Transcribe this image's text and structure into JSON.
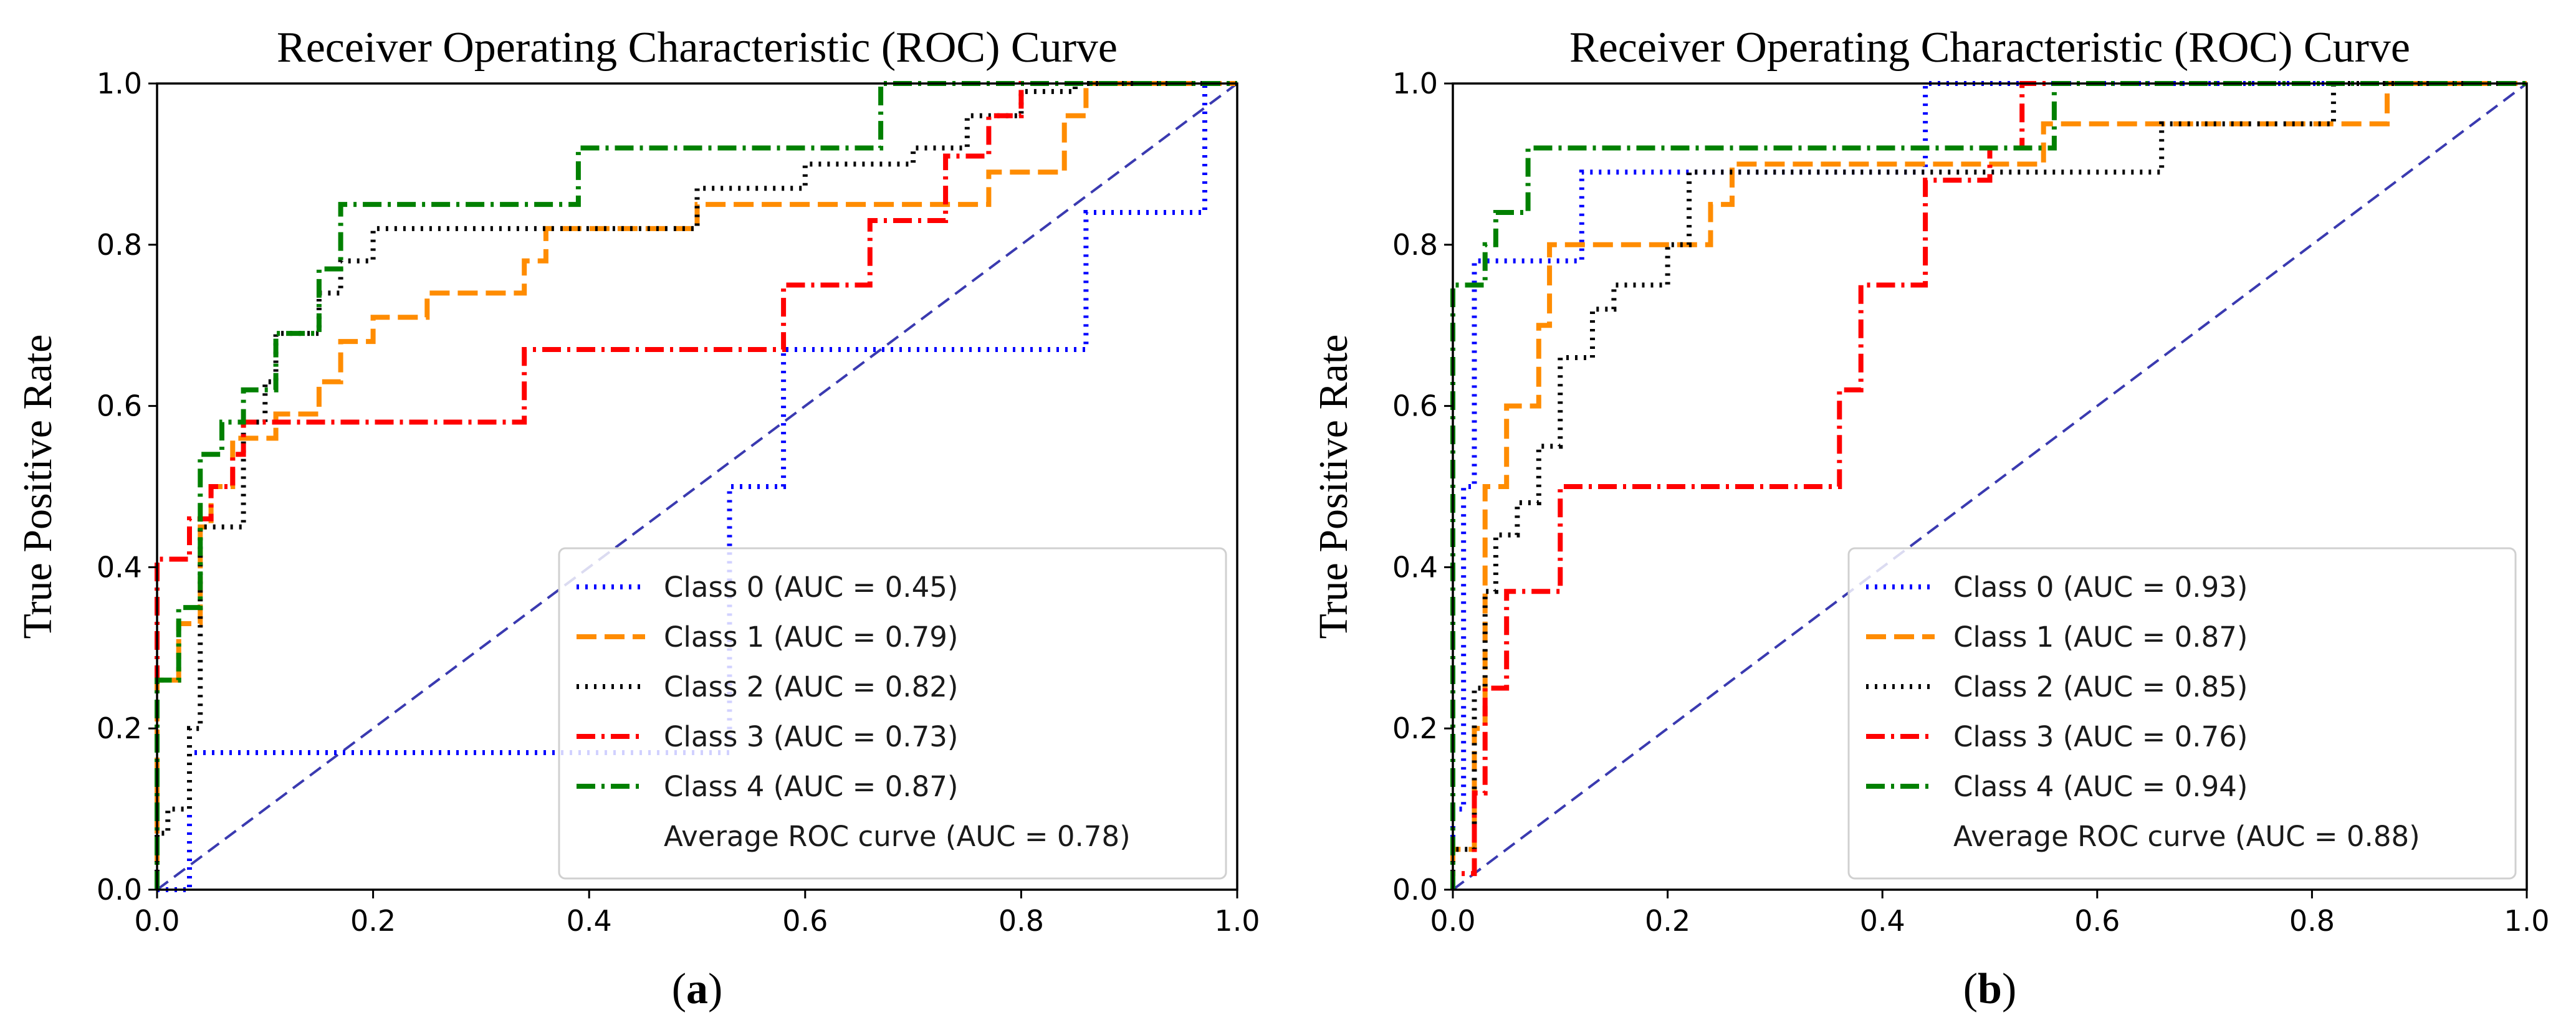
{
  "chart_data": [
    {
      "type": "line",
      "panel_label": "a",
      "title": "Receiver Operating Characteristic (ROC) Curve",
      "xlabel": "",
      "ylabel": "True Positive Rate",
      "xlim": [
        0,
        1
      ],
      "ylim": [
        0,
        1
      ],
      "xticks": [
        "0.0",
        "0.2",
        "0.4",
        "0.6",
        "0.8",
        "1.0"
      ],
      "yticks": [
        "0.0",
        "0.2",
        "0.4",
        "0.6",
        "0.8",
        "1.0"
      ],
      "grid": false,
      "legend_position": "lower-right",
      "legend_extra": "Average ROC curve (AUC = 0.78)",
      "series": [
        {
          "name": "Class 0 (AUC = 0.45)",
          "color": "#0000ff",
          "style": "dotted",
          "x": [
            0,
            0.02,
            0.03,
            0.03,
            0.53,
            0.53,
            0.58,
            0.58,
            0.86,
            0.86,
            0.97,
            0.97,
            1.0
          ],
          "y": [
            0,
            0,
            0.0,
            0.17,
            0.17,
            0.5,
            0.5,
            0.67,
            0.67,
            0.84,
            0.84,
            1.0,
            1.0
          ]
        },
        {
          "name": "Class 1 (AUC = 0.79)",
          "color": "#ff8c00",
          "style": "dashed",
          "x": [
            0,
            0,
            0.02,
            0.02,
            0.04,
            0.04,
            0.05,
            0.05,
            0.07,
            0.07,
            0.11,
            0.11,
            0.15,
            0.15,
            0.17,
            0.17,
            0.2,
            0.2,
            0.25,
            0.25,
            0.34,
            0.34,
            0.36,
            0.36,
            0.42,
            0.42,
            0.5,
            0.5,
            0.69,
            0.69,
            0.77,
            0.77,
            0.84,
            0.84,
            0.86,
            0.86,
            1.0
          ],
          "y": [
            0,
            0.26,
            0.26,
            0.33,
            0.33,
            0.45,
            0.45,
            0.5,
            0.5,
            0.56,
            0.56,
            0.59,
            0.59,
            0.63,
            0.63,
            0.68,
            0.68,
            0.71,
            0.71,
            0.74,
            0.74,
            0.78,
            0.78,
            0.82,
            0.82,
            0.82,
            0.82,
            0.85,
            0.85,
            0.85,
            0.85,
            0.89,
            0.89,
            0.96,
            0.96,
            1.0,
            1.0
          ]
        },
        {
          "name": "Class 2 (AUC = 0.82)",
          "color": "#000000",
          "style": "dotted",
          "x": [
            0,
            0,
            0.01,
            0.01,
            0.03,
            0.03,
            0.04,
            0.04,
            0.08,
            0.08,
            0.1,
            0.1,
            0.11,
            0.11,
            0.15,
            0.15,
            0.17,
            0.17,
            0.2,
            0.2,
            0.5,
            0.5,
            0.6,
            0.6,
            0.7,
            0.7,
            0.75,
            0.75,
            0.8,
            0.8,
            0.85,
            0.85,
            1.0
          ],
          "y": [
            0,
            0.07,
            0.07,
            0.1,
            0.1,
            0.2,
            0.2,
            0.45,
            0.45,
            0.58,
            0.58,
            0.63,
            0.63,
            0.69,
            0.69,
            0.74,
            0.74,
            0.78,
            0.78,
            0.82,
            0.82,
            0.87,
            0.87,
            0.9,
            0.9,
            0.92,
            0.92,
            0.96,
            0.96,
            0.99,
            0.99,
            1.0,
            1.0
          ]
        },
        {
          "name": "Class 3 (AUC = 0.73)",
          "color": "#ff0000",
          "style": "dashdot",
          "x": [
            0,
            0,
            0.03,
            0.03,
            0.05,
            0.05,
            0.07,
            0.07,
            0.08,
            0.08,
            0.34,
            0.34,
            0.58,
            0.58,
            0.66,
            0.66,
            0.73,
            0.73,
            0.77,
            0.77,
            0.8,
            0.8,
            1.0
          ],
          "y": [
            0,
            0.41,
            0.41,
            0.46,
            0.46,
            0.5,
            0.5,
            0.54,
            0.54,
            0.58,
            0.58,
            0.67,
            0.67,
            0.75,
            0.75,
            0.83,
            0.83,
            0.91,
            0.91,
            0.96,
            0.96,
            1.0,
            1.0
          ]
        },
        {
          "name": "Class 4 (AUC = 0.87)",
          "color": "#008000",
          "style": "dashdot",
          "x": [
            0,
            0,
            0.02,
            0.02,
            0.04,
            0.04,
            0.06,
            0.06,
            0.08,
            0.08,
            0.11,
            0.11,
            0.15,
            0.15,
            0.17,
            0.17,
            0.39,
            0.39,
            0.67,
            0.67,
            1.0
          ],
          "y": [
            0,
            0.26,
            0.26,
            0.35,
            0.35,
            0.54,
            0.54,
            0.58,
            0.58,
            0.62,
            0.62,
            0.69,
            0.69,
            0.77,
            0.77,
            0.85,
            0.85,
            0.92,
            0.92,
            1.0,
            1.0
          ]
        }
      ]
    },
    {
      "type": "line",
      "panel_label": "b",
      "title": "Receiver Operating Characteristic (ROC) Curve",
      "xlabel": "",
      "ylabel": "True Positive Rate",
      "xlim": [
        0,
        1
      ],
      "ylim": [
        0,
        1
      ],
      "xticks": [
        "0.0",
        "0.2",
        "0.4",
        "0.6",
        "0.8",
        "1.0"
      ],
      "yticks": [
        "0.0",
        "0.2",
        "0.4",
        "0.6",
        "0.8",
        "1.0"
      ],
      "grid": false,
      "legend_position": "lower-right",
      "legend_extra": "Average ROC curve (AUC = 0.88)",
      "series": [
        {
          "name": "Class 0 (AUC = 0.93)",
          "color": "#0000ff",
          "style": "dotted",
          "x": [
            0,
            0,
            0.01,
            0.01,
            0.02,
            0.02,
            0.04,
            0.04,
            0.12,
            0.12,
            0.44,
            0.44,
            1.0
          ],
          "y": [
            0,
            0.1,
            0.1,
            0.5,
            0.5,
            0.78,
            0.78,
            0.78,
            0.78,
            0.89,
            0.89,
            1.0,
            1.0
          ]
        },
        {
          "name": "Class 1 (AUC = 0.87)",
          "color": "#ff8c00",
          "style": "dashed",
          "x": [
            0,
            0,
            0.02,
            0.02,
            0.03,
            0.03,
            0.05,
            0.05,
            0.08,
            0.08,
            0.09,
            0.09,
            0.24,
            0.24,
            0.26,
            0.26,
            0.55,
            0.55,
            0.73,
            0.73,
            0.87,
            0.87,
            1.0
          ],
          "y": [
            0,
            0.05,
            0.05,
            0.2,
            0.2,
            0.5,
            0.5,
            0.6,
            0.6,
            0.7,
            0.7,
            0.8,
            0.8,
            0.85,
            0.85,
            0.9,
            0.9,
            0.95,
            0.95,
            0.95,
            0.95,
            1.0,
            1.0
          ]
        },
        {
          "name": "Class 2 (AUC = 0.85)",
          "color": "#000000",
          "style": "dotted",
          "x": [
            0,
            0,
            0.02,
            0.02,
            0.03,
            0.03,
            0.04,
            0.04,
            0.06,
            0.06,
            0.08,
            0.08,
            0.1,
            0.1,
            0.13,
            0.13,
            0.15,
            0.15,
            0.2,
            0.2,
            0.22,
            0.22,
            0.66,
            0.66,
            0.82,
            0.82,
            1.0
          ],
          "y": [
            0,
            0.05,
            0.05,
            0.25,
            0.25,
            0.37,
            0.37,
            0.44,
            0.44,
            0.48,
            0.48,
            0.55,
            0.55,
            0.66,
            0.66,
            0.72,
            0.72,
            0.75,
            0.75,
            0.8,
            0.8,
            0.89,
            0.89,
            0.95,
            0.95,
            1.0,
            1.0
          ]
        },
        {
          "name": "Class 3 (AUC = 0.76)",
          "color": "#ff0000",
          "style": "dashdot",
          "x": [
            0,
            0,
            0.02,
            0.02,
            0.03,
            0.03,
            0.05,
            0.05,
            0.1,
            0.1,
            0.36,
            0.36,
            0.38,
            0.38,
            0.44,
            0.44,
            0.5,
            0.5,
            0.53,
            0.53,
            1.0
          ],
          "y": [
            0,
            0.02,
            0.02,
            0.12,
            0.12,
            0.25,
            0.25,
            0.37,
            0.37,
            0.5,
            0.5,
            0.62,
            0.62,
            0.75,
            0.75,
            0.88,
            0.88,
            0.92,
            0.92,
            1.0,
            1.0
          ]
        },
        {
          "name": "Class 4 (AUC = 0.94)",
          "color": "#008000",
          "style": "dashdot",
          "x": [
            0,
            0,
            0.03,
            0.03,
            0.04,
            0.04,
            0.07,
            0.07,
            0.14,
            0.14,
            0.56,
            0.56,
            1.0
          ],
          "y": [
            0,
            0.75,
            0.75,
            0.8,
            0.8,
            0.84,
            0.84,
            0.92,
            0.92,
            0.92,
            0.92,
            1.0,
            1.0
          ]
        }
      ]
    }
  ]
}
